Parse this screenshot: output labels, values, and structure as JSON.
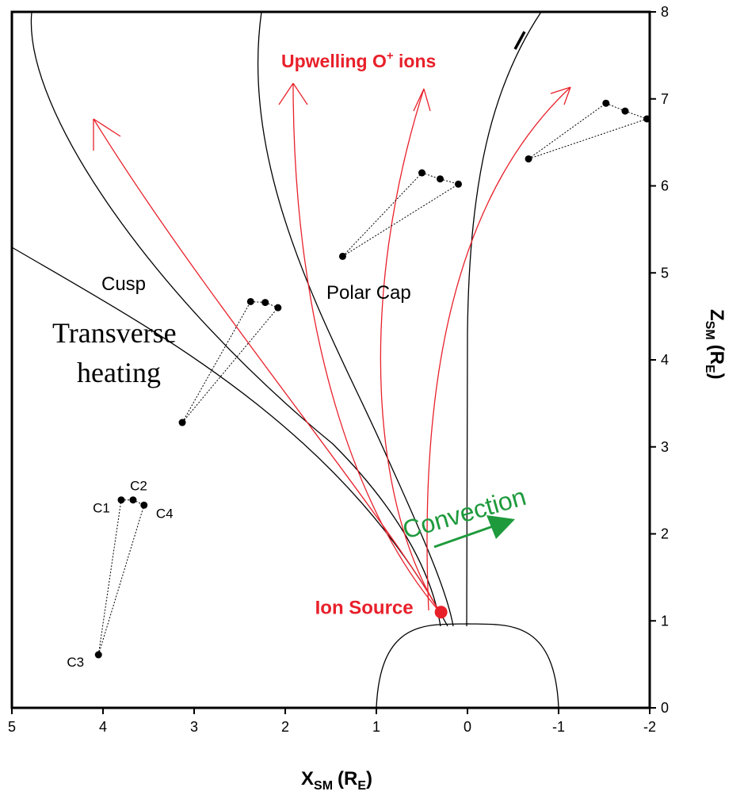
{
  "chart_data": {
    "type": "scatter",
    "xlim": [
      5,
      -2
    ],
    "ylim": [
      0,
      8
    ],
    "xticks": [
      5,
      4,
      3,
      2,
      1,
      0,
      -1,
      -2
    ],
    "yticks": [
      0,
      1,
      2,
      3,
      4,
      5,
      6,
      7,
      8
    ],
    "x_label": {
      "main": "X",
      "sub": "SM",
      "unit": "(R",
      "unit_sub": "E",
      "close": ")"
    },
    "y_label": {
      "main": "Z",
      "sub": "SM",
      "unit": "(R",
      "unit_sub": "E",
      "close": ")"
    },
    "series": [
      {
        "color": "#000000",
        "x": [
          3.8,
          3.67,
          3.55,
          4.05
        ],
        "y": [
          2.39,
          2.39,
          2.33,
          0.61
        ],
        "point_labels": [
          "C1",
          "C2",
          "C4",
          "C3"
        ]
      },
      {
        "color": "#000000",
        "x": [
          2.38,
          2.22,
          2.08,
          3.13
        ],
        "y": [
          4.67,
          4.66,
          4.6,
          3.28
        ]
      },
      {
        "color": "#000000",
        "x": [
          0.5,
          0.3,
          0.1,
          1.37
        ],
        "y": [
          6.15,
          6.08,
          6.02,
          5.19
        ]
      },
      {
        "color": "#000000",
        "x": [
          -1.52,
          -1.73,
          -1.97,
          -0.67
        ],
        "y": [
          6.95,
          6.86,
          6.77,
          6.31
        ]
      }
    ],
    "ion_source": {
      "label": "Ion Source",
      "x": 0.29,
      "y": 1.1,
      "color": "#e8202a"
    },
    "annotations": {
      "upwelling": {
        "text": "Upwelling O",
        "sup": "+",
        "rest": " ions"
      },
      "cusp": "Cusp",
      "polar_cap": "Polar Cap",
      "transverse": "Transverse",
      "heating": "heating",
      "convection": "Convection"
    }
  }
}
